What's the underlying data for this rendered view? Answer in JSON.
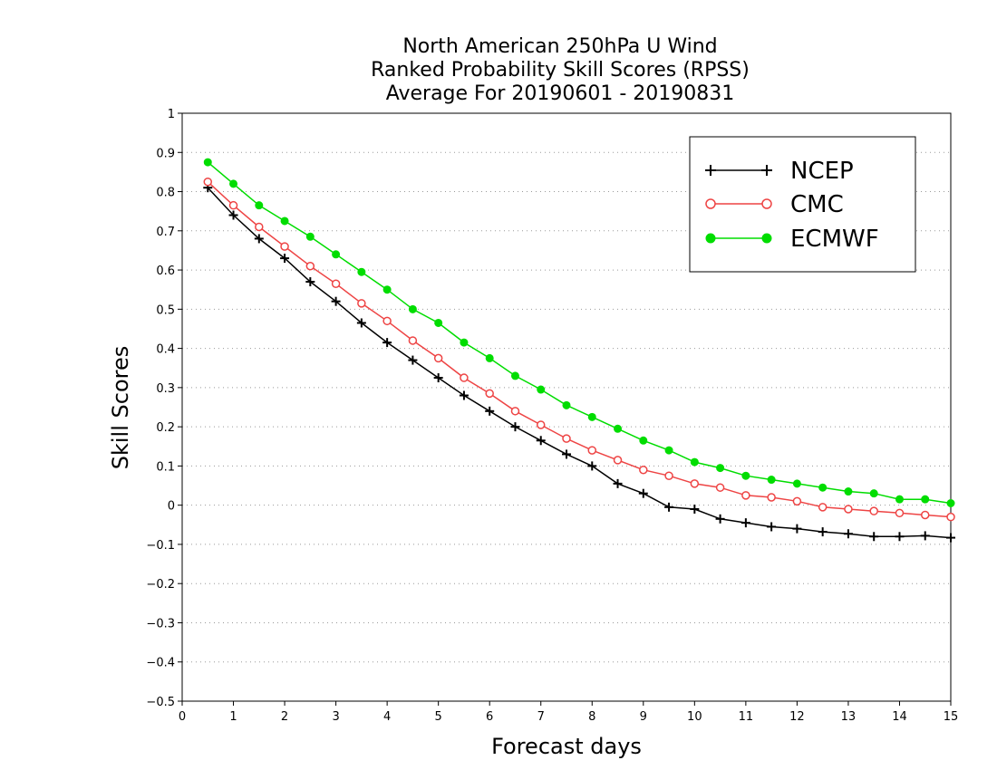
{
  "chart_data": {
    "type": "line",
    "title_lines": [
      "North American 250hPa U Wind",
      "Ranked Probability Skill Scores (RPSS)",
      "Average For 20190601 - 20190831"
    ],
    "xlabel": "Forecast days",
    "ylabel": "Skill Scores",
    "xlim": [
      0,
      15
    ],
    "ylim": [
      -0.5,
      1
    ],
    "xticks": [
      "0",
      "1",
      "2",
      "3",
      "4",
      "5",
      "6",
      "7",
      "8",
      "9",
      "10",
      "11",
      "12",
      "13",
      "14",
      "15"
    ],
    "yticks": [
      "1",
      "0.9",
      "0.8",
      "0.7",
      "0.6",
      "0.5",
      "0.4",
      "0.3",
      "0.2",
      "0.1",
      "0",
      "−0.1",
      "−0.2",
      "−0.3",
      "−0.4",
      "−0.5"
    ],
    "grid": "horizontal dotted",
    "legend_position": "top-right",
    "x": [
      0.5,
      1,
      1.5,
      2,
      2.5,
      3,
      3.5,
      4,
      4.5,
      5,
      5.5,
      6,
      6.5,
      7,
      7.5,
      8,
      8.5,
      9,
      9.5,
      10,
      10.5,
      11,
      11.5,
      12,
      12.5,
      13,
      13.5,
      14,
      14.5,
      15
    ],
    "series": [
      {
        "name": "NCEP",
        "color": "#000000",
        "marker": "plus",
        "values": [
          0.81,
          0.74,
          0.68,
          0.63,
          0.57,
          0.52,
          0.465,
          0.415,
          0.37,
          0.325,
          0.28,
          0.24,
          0.2,
          0.165,
          0.13,
          0.1,
          0.055,
          0.03,
          -0.005,
          -0.01,
          -0.035,
          -0.045,
          -0.055,
          -0.06,
          -0.068,
          -0.073,
          -0.08,
          -0.08,
          -0.078,
          -0.083
        ]
      },
      {
        "name": "CMC",
        "color": "#ee4444",
        "marker": "open-circle",
        "values": [
          0.825,
          0.765,
          0.71,
          0.66,
          0.61,
          0.565,
          0.515,
          0.47,
          0.42,
          0.375,
          0.325,
          0.285,
          0.24,
          0.205,
          0.17,
          0.14,
          0.115,
          0.09,
          0.075,
          0.055,
          0.045,
          0.025,
          0.02,
          0.01,
          -0.005,
          -0.01,
          -0.015,
          -0.02,
          -0.025,
          -0.03
        ]
      },
      {
        "name": "ECMWF",
        "color": "#00dd00",
        "marker": "filled-circle",
        "values": [
          0.875,
          0.82,
          0.765,
          0.725,
          0.685,
          0.64,
          0.595,
          0.55,
          0.5,
          0.465,
          0.415,
          0.375,
          0.33,
          0.295,
          0.255,
          0.225,
          0.195,
          0.165,
          0.14,
          0.11,
          0.095,
          0.075,
          0.065,
          0.055,
          0.045,
          0.035,
          0.03,
          0.015,
          0.015,
          0.005
        ]
      }
    ]
  }
}
